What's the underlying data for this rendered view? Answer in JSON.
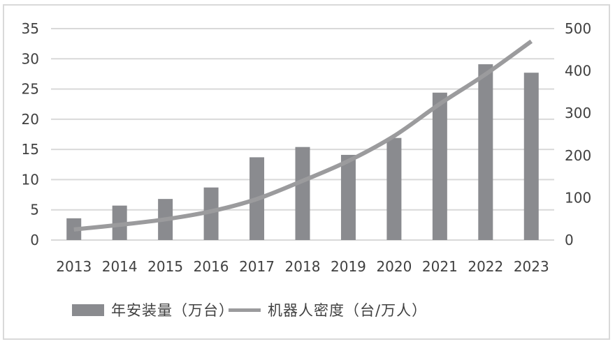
{
  "chart_data": {
    "type": "bar+line",
    "title": "",
    "categories": [
      "2013",
      "2014",
      "2015",
      "2016",
      "2017",
      "2018",
      "2019",
      "2020",
      "2021",
      "2022",
      "2023"
    ],
    "series": [
      {
        "name": "年安装量（万台）",
        "type": "bar",
        "axis": "left",
        "values": [
          3.6,
          5.7,
          6.8,
          8.7,
          13.7,
          15.4,
          14.1,
          16.9,
          24.4,
          29.1,
          27.7
        ]
      },
      {
        "name": "机器人密度（台/万人）",
        "type": "line",
        "axis": "right",
        "values": [
          25,
          36,
          49,
          68,
          97,
          140,
          187,
          246,
          322,
          392,
          470
        ]
      }
    ],
    "left_axis": {
      "label": "",
      "ylim": [
        0,
        35
      ],
      "ticks": [
        0,
        5,
        10,
        15,
        20,
        25,
        30,
        35
      ]
    },
    "right_axis": {
      "label": "",
      "ylim": [
        0,
        500
      ],
      "ticks": [
        0,
        100,
        200,
        300,
        400,
        500
      ]
    },
    "xlabel": "",
    "grid": true,
    "legend_position": "bottom",
    "colors": {
      "bar": "#8a8b8f",
      "line": "#9b9b9d",
      "grid": "#d9d9d9",
      "text": "#404040"
    }
  },
  "legend": {
    "bar_label": "年安装量（万台）",
    "line_label": "机器人密度（台/万人）"
  }
}
